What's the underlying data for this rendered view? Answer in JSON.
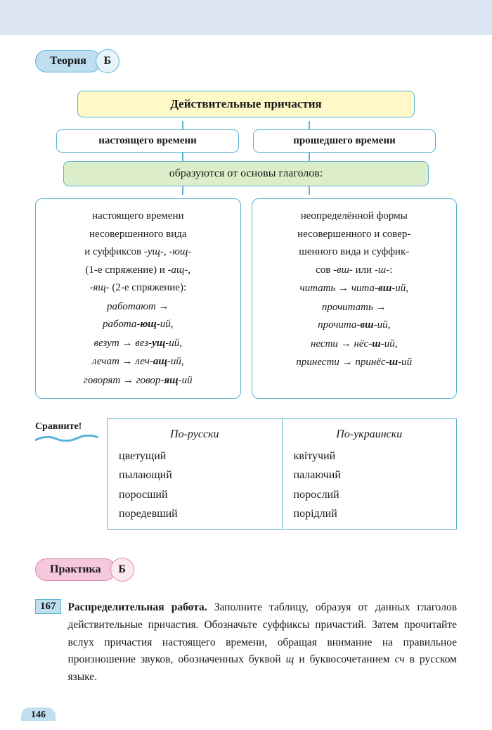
{
  "colors": {
    "header_bg": "#dce6f5",
    "blue_border": "#5bb3d9",
    "blue_fill": "#bfdff0",
    "blue_light": "#e8f3fa",
    "yellow_fill": "#fff9c7",
    "green_fill": "#dbeec9",
    "pink_fill": "#f5c8dc",
    "pink_border": "#d98bb0",
    "pink_light": "#fce8f0"
  },
  "theory": {
    "tag": "Теория",
    "letter": "Б",
    "title": "Действительные причастия",
    "branches": {
      "left": "настоящего времени",
      "right": "прошедшего времени"
    },
    "green": "образуются от основы глаголов:",
    "detail_left_html": "настоящего времени<br>несовершенного вида<br>и суффиксов <em>-ущ-</em>, <em>-ющ-</em><br>(1-е спряжение) и <em>-ащ-</em>,<br><em>-ящ-</em> (2-е спряжение):<br><em>работают</em> <span class='arrow'>→</span><br><em>работа-<b>ющ</b>-ий</em>,<br><em>везут</em> <span class='arrow'>→</span> <em>вез-<b>ущ</b>-ий</em>,<br><em>лечат</em> <span class='arrow'>→</span> <em>леч-<b>ащ</b>-ий</em>,<br><em>говорят</em> <span class='arrow'>→</span> <em>говор-<b>ящ</b>-ий</em>",
    "detail_right_html": "неопределённой формы<br>несовершенного и совер-<br>шенного вида и суффик-<br>сов <em>-вш-</em> или <em>-ш-</em>:<br><em>читать</em> <span class='arrow'>→</span> <em>чита-<b>вш</b>-ий</em>,<br><em>прочитать</em> <span class='arrow'>→</span><br><em>прочита-<b>вш</b>-ий</em>,<br><em>нести</em> <span class='arrow'>→</span> <em>нёс-<b>ш</b>-ий</em>,<br><em>принести</em> <span class='arrow'>→</span> <em>принёс-<b>ш</b>-ий</em>"
  },
  "compare": {
    "label": "Сравните!",
    "left_header": "По-русски",
    "right_header": "По-украински",
    "left_items": [
      "цветущий",
      "пылающий",
      "поросший",
      "поредевший"
    ],
    "right_items": [
      "квітучий",
      "палаючий",
      "порослий",
      "порідлий"
    ]
  },
  "practice": {
    "tag": "Практика",
    "letter": "Б"
  },
  "exercise": {
    "num": "167",
    "lead": "Распределительная работа.",
    "body": "Заполните таблицу, образуя от данных глаголов действительные причастия. Обозначьте суффиксы причастий. Затем прочитайте вслух причастия настоящего времени, обращая внимание на правильное произношение звуков, обозначенных буквой <em>щ</em> и буквосочетанием <em>сч</em> в русском языке."
  },
  "page": "146"
}
